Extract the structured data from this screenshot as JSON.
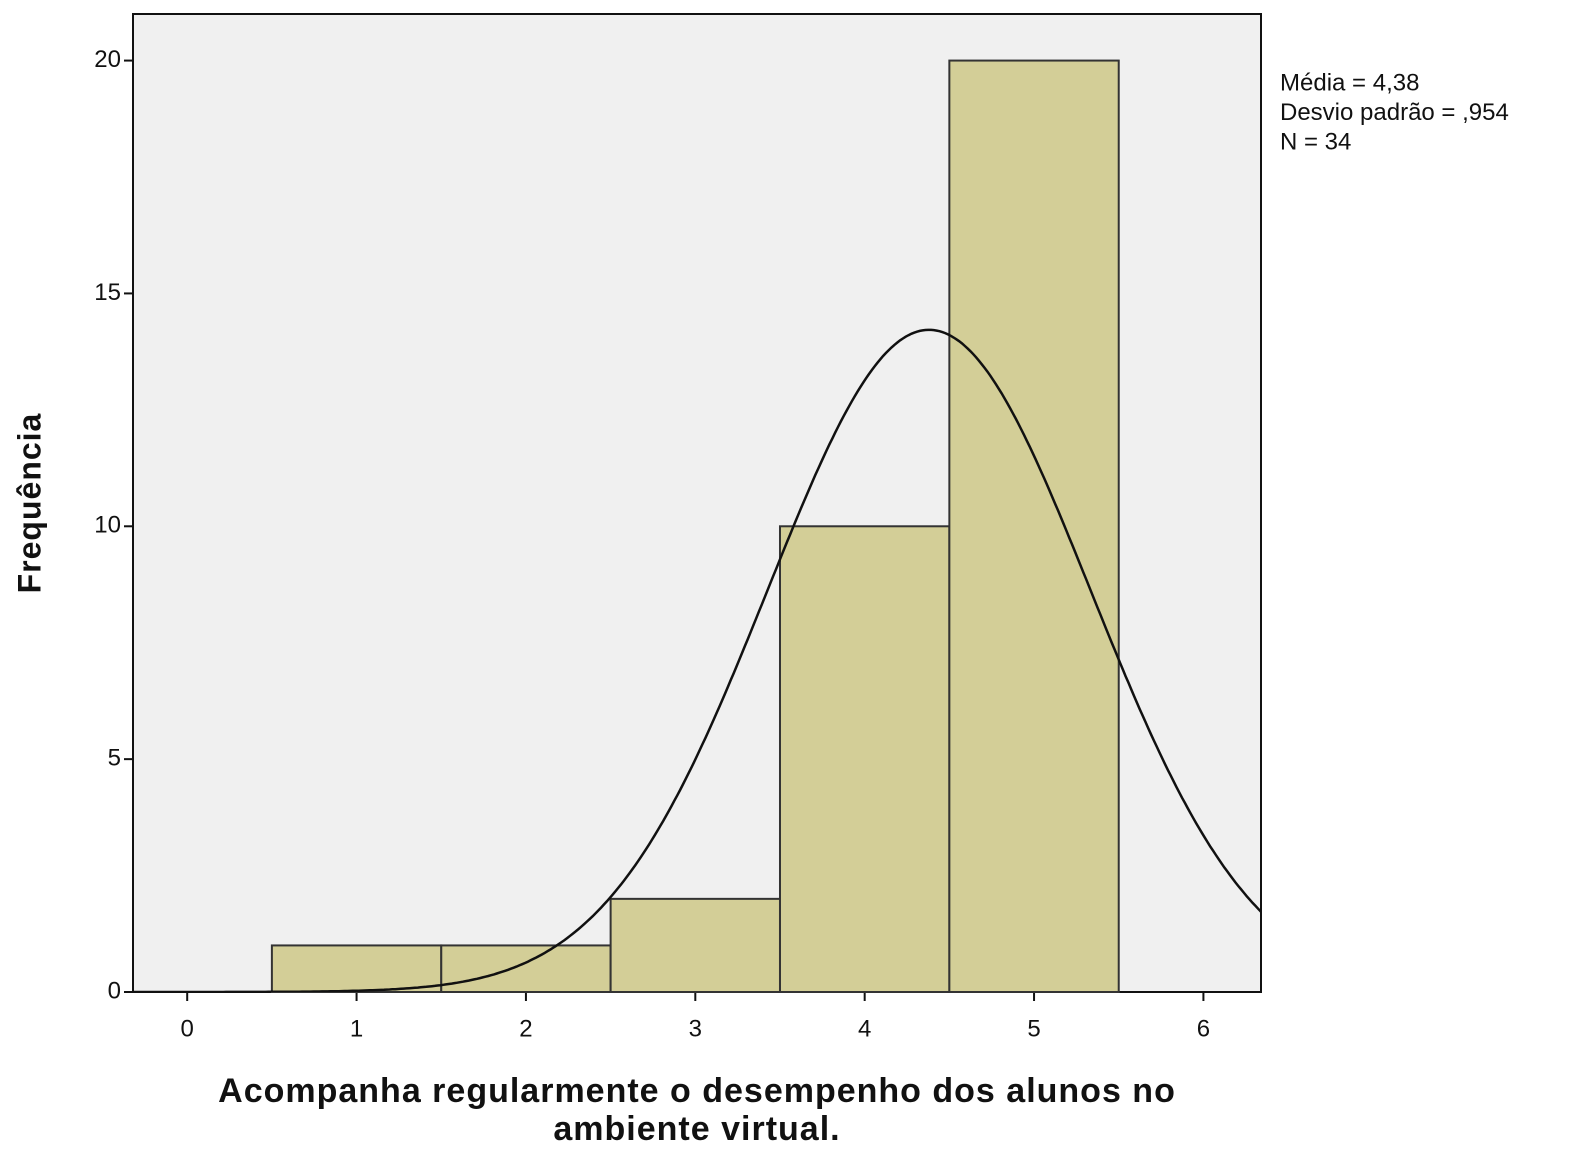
{
  "chart_data": {
    "type": "histogram",
    "xlabel": "Acompanha regularmente o desempenho dos alunos no ambiente virtual.",
    "ylabel": "Frequência",
    "bins": [
      0.5,
      1.5,
      2.5,
      3.5,
      4.5,
      5.5
    ],
    "counts": [
      1,
      1,
      2,
      10,
      20
    ],
    "color": "#d3ce97",
    "xlim": [
      -0.32,
      6.34
    ],
    "ylim": [
      0,
      21
    ],
    "xticks": [
      0,
      1,
      2,
      3,
      4,
      5,
      6
    ],
    "yticks": [
      0,
      5,
      10,
      15,
      20
    ],
    "normal_curve": true,
    "stats": [
      {
        "label": "Média = 4,38",
        "value": 4.38
      },
      {
        "label": "Desvio padrão = ,954",
        "value": 0.954
      },
      {
        "label": "N = 34",
        "value": 34
      }
    ]
  }
}
